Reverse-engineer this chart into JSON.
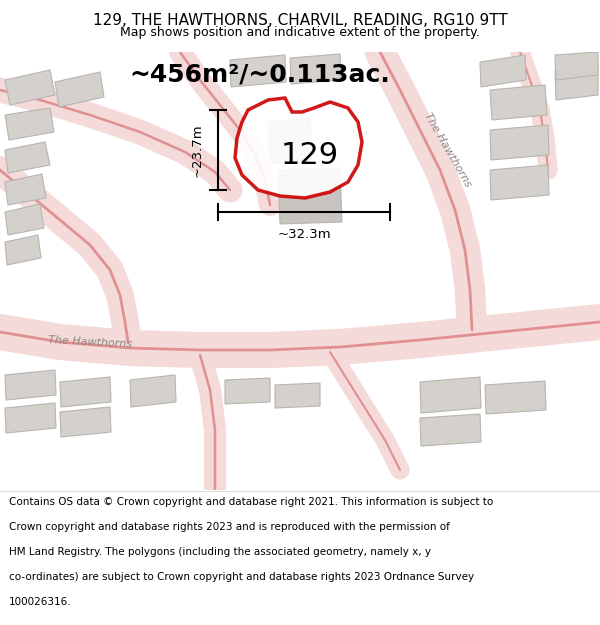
{
  "title": "129, THE HAWTHORNS, CHARVIL, READING, RG10 9TT",
  "subtitle": "Map shows position and indicative extent of the property.",
  "footer_line1": "Contains OS data © Crown copyright and database right 2021. This information is subject to",
  "footer_line2": "Crown copyright and database rights 2023 and is reproduced with the permission of",
  "footer_line3": "HM Land Registry. The polygons (including the associated geometry, namely x, y",
  "footer_line4": "co-ordinates) are subject to Crown copyright and database rights 2023 Ordnance Survey",
  "footer_line5": "100026316.",
  "area_label": "~456m²/~0.113ac.",
  "property_number": "129",
  "dim_width": "~32.3m",
  "dim_height": "~23.7m",
  "road_label_right": "The Hawthorns",
  "road_label_left": "The Hawthorns",
  "map_bg": "#f0ebe8",
  "road_fill_color": "#f5dada",
  "road_line_color": "#e09090",
  "building_color": "#d4d0cc",
  "building_edge": "#b8b4b0",
  "plot_line_color": "#cc0000",
  "figsize": [
    6.0,
    6.25
  ],
  "dpi": 100,
  "title_fontsize": 11,
  "subtitle_fontsize": 9,
  "footer_fontsize": 7.5,
  "area_fontsize": 18,
  "number_fontsize": 22
}
